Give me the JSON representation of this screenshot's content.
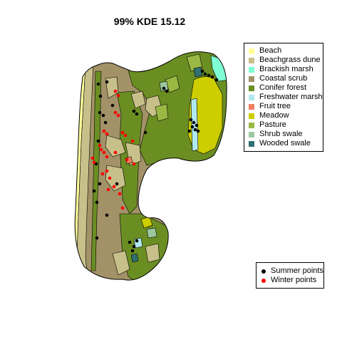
{
  "title": "99% KDE 15.12",
  "colors": {
    "beach": "#ffff99",
    "beachgrass_dune": "#c8c08a",
    "brackish_marsh": "#7fffd4",
    "coastal_scrub": "#a39268",
    "conifer_forest": "#6b8e23",
    "freshwater_marsh": "#b0e8f0",
    "fruit_tree": "#f08060",
    "meadow": "#cdcd00",
    "pasture": "#9ab844",
    "shrub_swale": "#9cc8a0",
    "wooded_swale": "#2f7070",
    "summer_point": "#000000",
    "winter_point": "#ff0000"
  },
  "legend": {
    "habitats": [
      {
        "label": "Beach",
        "color": "#ffff99"
      },
      {
        "label": "Beachgrass dune",
        "color": "#c8c08a"
      },
      {
        "label": "Brackish marsh",
        "color": "#7fffd4"
      },
      {
        "label": "Coastal scrub",
        "color": "#a39268"
      },
      {
        "label": "Conifer forest",
        "color": "#6b8e23"
      },
      {
        "label": "Freshwater marsh",
        "color": "#b0e8f0"
      },
      {
        "label": "Fruit tree",
        "color": "#f08060"
      },
      {
        "label": "Meadow",
        "color": "#cdcd00"
      },
      {
        "label": "Pasture",
        "color": "#9ab844"
      },
      {
        "label": "Shrub swale",
        "color": "#9cc8a0"
      },
      {
        "label": "Wooded swale",
        "color": "#2f7070"
      }
    ],
    "points": [
      {
        "label": "Summer points",
        "color": "#000000"
      },
      {
        "label": "Winter points",
        "color": "#ff0000"
      }
    ]
  }
}
